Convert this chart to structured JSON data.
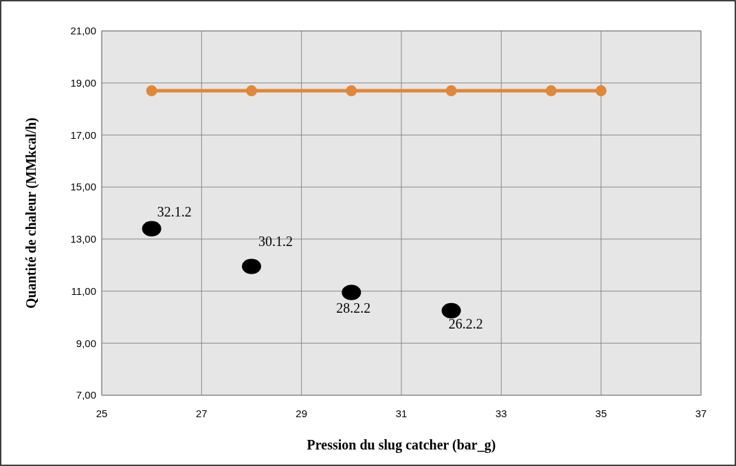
{
  "chart_data": {
    "type": "scatter",
    "xlabel": "Pression du slug catcher (bar_g)",
    "ylabel": "Quantité de chaleur  (MMkcal/h)",
    "xlim": [
      25,
      37
    ],
    "xticks": [
      25,
      27,
      29,
      31,
      33,
      35,
      37
    ],
    "ylim": [
      7,
      21
    ],
    "yticks": [
      {
        "value": 7,
        "label": "7,00"
      },
      {
        "value": 9,
        "label": "9,00"
      },
      {
        "value": 11,
        "label": "11,00"
      },
      {
        "value": 13,
        "label": "13,00"
      },
      {
        "value": 15,
        "label": "15,00"
      },
      {
        "value": 17,
        "label": "17,00"
      },
      {
        "value": 19,
        "label": "19,00"
      },
      {
        "value": 21,
        "label": "21,00"
      }
    ],
    "grid": true,
    "marker": "circle",
    "series": [
      {
        "type": "line",
        "color": "#e0873a",
        "x": [
          26,
          28,
          30,
          32,
          34,
          35
        ],
        "values": [
          18.7,
          18.7,
          18.7,
          18.7,
          18.7,
          18.7
        ]
      },
      {
        "color": "#000000",
        "x": [
          26,
          28,
          30,
          32
        ],
        "values": [
          13.4,
          11.95,
          10.95,
          10.25
        ]
      }
    ],
    "annotations": [
      {
        "text": "32.1.2",
        "x": 26,
        "y": 13.4
      },
      {
        "text": "30.1.2",
        "x": 28,
        "y": 11.95
      },
      {
        "text": "28.2.2",
        "x": 30,
        "y": 10.95
      },
      {
        "text": "26.2.2",
        "x": 32,
        "y": 10.25
      }
    ]
  }
}
